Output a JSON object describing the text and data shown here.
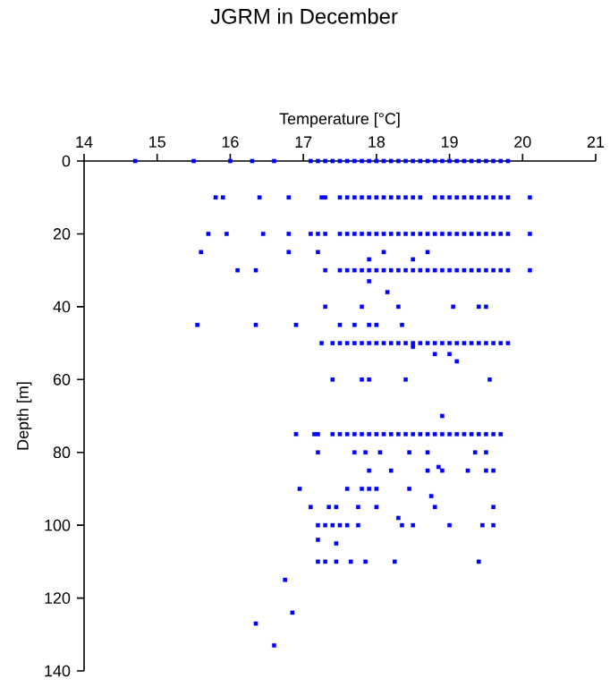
{
  "chart_data": {
    "type": "scatter",
    "title": "JGRM in December",
    "xlabel": "Temperature [°C]",
    "ylabel": "Depth [m]",
    "xlim": [
      14,
      21
    ],
    "xticks": [
      14,
      15,
      16,
      17,
      18,
      19,
      20,
      21
    ],
    "ylim": [
      140,
      0
    ],
    "yticks": [
      0,
      20,
      40,
      60,
      80,
      100,
      120,
      140
    ],
    "marker": "square",
    "series": [
      {
        "color": "#0000ff",
        "x": [
          14.7,
          15.5,
          16.0,
          16.3,
          16.6,
          17.1,
          17.2,
          17.3,
          17.4,
          17.5,
          17.6,
          17.7,
          17.8,
          17.9,
          18.0,
          18.1,
          18.2,
          18.3,
          18.4,
          18.5,
          18.6,
          18.7,
          18.8,
          18.9,
          19.0,
          19.1,
          19.2,
          19.3,
          19.4,
          19.5,
          19.6,
          19.7,
          19.8,
          15.8,
          15.9,
          16.4,
          16.8,
          17.25,
          17.3,
          17.5,
          17.6,
          17.7,
          17.8,
          17.9,
          18.0,
          18.1,
          18.2,
          18.3,
          18.4,
          18.5,
          18.6,
          18.8,
          18.9,
          19.0,
          19.1,
          19.2,
          19.3,
          19.4,
          19.5,
          19.6,
          19.7,
          19.8,
          20.1,
          15.7,
          15.95,
          16.45,
          16.8,
          17.1,
          17.2,
          17.3,
          17.5,
          17.6,
          17.7,
          17.8,
          17.9,
          18.0,
          18.1,
          18.2,
          18.3,
          18.4,
          18.5,
          18.6,
          18.7,
          18.8,
          18.9,
          19.0,
          19.1,
          19.2,
          19.3,
          19.4,
          19.5,
          19.6,
          19.7,
          19.8,
          20.1,
          15.6,
          16.8,
          17.2,
          18.1,
          18.7,
          17.9,
          18.5,
          16.1,
          16.35,
          17.3,
          17.5,
          17.6,
          17.7,
          17.8,
          17.9,
          18.0,
          18.1,
          18.2,
          18.3,
          18.4,
          18.5,
          18.6,
          18.7,
          18.8,
          18.9,
          19.0,
          19.1,
          19.2,
          19.3,
          19.4,
          19.5,
          19.6,
          19.7,
          19.8,
          20.1,
          17.9,
          18.15,
          17.3,
          17.8,
          18.3,
          19.05,
          19.4,
          19.5,
          15.55,
          16.35,
          16.9,
          17.5,
          17.7,
          17.9,
          18.0,
          18.35,
          17.25,
          17.4,
          17.5,
          17.6,
          17.7,
          17.8,
          17.9,
          18.0,
          18.1,
          18.2,
          18.3,
          18.4,
          18.5,
          18.6,
          18.7,
          18.8,
          18.9,
          19.0,
          19.1,
          19.2,
          19.3,
          19.4,
          19.5,
          19.6,
          19.7,
          19.8,
          18.5,
          18.8,
          19.0,
          19.1,
          17.4,
          17.8,
          17.9,
          18.4,
          19.55,
          18.9,
          16.9,
          17.15,
          17.2,
          17.4,
          17.5,
          17.6,
          17.7,
          17.8,
          17.9,
          18.0,
          18.1,
          18.2,
          18.3,
          18.4,
          18.5,
          18.6,
          18.7,
          18.8,
          18.9,
          19.0,
          19.1,
          19.2,
          19.3,
          19.4,
          19.5,
          19.6,
          19.7,
          17.2,
          17.7,
          17.85,
          18.05,
          18.45,
          18.7,
          19.35,
          19.5,
          18.85,
          17.9,
          18.2,
          18.7,
          18.9,
          19.25,
          19.5,
          19.6,
          16.95,
          17.6,
          17.8,
          17.9,
          18.0,
          18.45,
          18.75,
          17.1,
          17.35,
          17.45,
          17.75,
          18.0,
          18.8,
          19.6,
          18.3,
          17.2,
          17.3,
          17.4,
          17.5,
          17.6,
          17.75,
          18.35,
          18.5,
          19.0,
          19.45,
          19.6,
          17.2,
          17.45,
          17.2,
          17.3,
          17.45,
          17.65,
          17.85,
          18.25,
          19.4,
          16.75,
          16.85,
          16.35,
          16.6
        ],
        "values": [
          0,
          0,
          0,
          0,
          0,
          0,
          0,
          0,
          0,
          0,
          0,
          0,
          0,
          0,
          0,
          0,
          0,
          0,
          0,
          0,
          0,
          0,
          0,
          0,
          0,
          0,
          0,
          0,
          0,
          0,
          0,
          0,
          0,
          10,
          10,
          10,
          10,
          10,
          10,
          10,
          10,
          10,
          10,
          10,
          10,
          10,
          10,
          10,
          10,
          10,
          10,
          10,
          10,
          10,
          10,
          10,
          10,
          10,
          10,
          10,
          10,
          10,
          10,
          20,
          20,
          20,
          20,
          20,
          20,
          20,
          20,
          20,
          20,
          20,
          20,
          20,
          20,
          20,
          20,
          20,
          20,
          20,
          20,
          20,
          20,
          20,
          20,
          20,
          20,
          20,
          20,
          20,
          20,
          20,
          20,
          25,
          25,
          25,
          25,
          25,
          27,
          27,
          30,
          30,
          30,
          30,
          30,
          30,
          30,
          30,
          30,
          30,
          30,
          30,
          30,
          30,
          30,
          30,
          30,
          30,
          30,
          30,
          30,
          30,
          30,
          30,
          30,
          30,
          30,
          30,
          33,
          36,
          40,
          40,
          40,
          40,
          40,
          40,
          45,
          45,
          45,
          45,
          45,
          45,
          45,
          45,
          50,
          50,
          50,
          50,
          50,
          50,
          50,
          50,
          50,
          50,
          50,
          50,
          50,
          50,
          50,
          50,
          50,
          50,
          50,
          50,
          50,
          50,
          50,
          50,
          50,
          50,
          51,
          53,
          53,
          55,
          60,
          60,
          60,
          60,
          60,
          70,
          75,
          75,
          75,
          75,
          75,
          75,
          75,
          75,
          75,
          75,
          75,
          75,
          75,
          75,
          75,
          75,
          75,
          75,
          75,
          75,
          75,
          75,
          75,
          75,
          75,
          75,
          75,
          80,
          80,
          80,
          80,
          80,
          80,
          80,
          80,
          84,
          85,
          85,
          85,
          85,
          85,
          85,
          85,
          90,
          90,
          90,
          90,
          90,
          90,
          92,
          95,
          95,
          95,
          95,
          95,
          95,
          95,
          98,
          100,
          100,
          100,
          100,
          100,
          100,
          100,
          100,
          100,
          100,
          100,
          104,
          105,
          110,
          110,
          110,
          110,
          110,
          110,
          110,
          115,
          124,
          127,
          133
        ]
      }
    ]
  }
}
